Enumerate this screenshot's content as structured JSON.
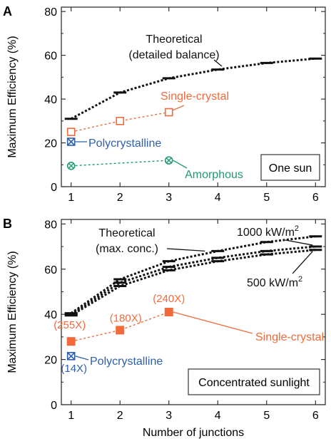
{
  "shared": {
    "ylabel": "Maximum Efficiency (%)",
    "xlabel": "Number of junctions"
  },
  "chart_data": [
    {
      "panel": "A",
      "type": "line",
      "x_ticks": [
        "1",
        "2",
        "3",
        "4",
        "5",
        "6"
      ],
      "y_ticks": [
        "0",
        "20",
        "40",
        "60",
        "80"
      ],
      "xlim": [
        0.8,
        6.2
      ],
      "ylim": [
        0,
        82
      ],
      "box_label": "One sun",
      "series": [
        {
          "name": "Theoretical (detailed balance)",
          "label_lines": [
            "Theoretical",
            "(detailed balance)"
          ],
          "color": "#111111",
          "marker": "hline",
          "x": [
            1,
            2,
            3,
            4,
            5,
            6
          ],
          "y": [
            31,
            43,
            49.5,
            53.5,
            56.5,
            58.5
          ]
        },
        {
          "name": "Single-crystal",
          "label_lines": [
            "Single-crystal"
          ],
          "color": "#f26a3a",
          "marker": "open-square",
          "x": [
            1,
            2,
            3
          ],
          "y": [
            25,
            30,
            34
          ]
        },
        {
          "name": "Polycrystalline",
          "label_lines": [
            "Polycrystalline"
          ],
          "color": "#2f5fa8",
          "marker": "cross-square",
          "x": [
            1
          ],
          "y": [
            20.5
          ]
        },
        {
          "name": "Amorphous",
          "label_lines": [
            "Amorphous"
          ],
          "color": "#1f9a6e",
          "marker": "cross-circle",
          "x": [
            1,
            3
          ],
          "y": [
            9.5,
            12
          ]
        }
      ]
    },
    {
      "panel": "B",
      "type": "line",
      "x_ticks": [
        "1",
        "2",
        "3",
        "4",
        "5",
        "6"
      ],
      "y_ticks": [
        "0",
        "20",
        "40",
        "60",
        "80"
      ],
      "xlim": [
        0.8,
        6.2
      ],
      "ylim": [
        0,
        82
      ],
      "box_label": "Concentrated sunlight",
      "series": [
        {
          "name": "Theoretical (max. conc.)",
          "label_lines": [
            "Theoretical",
            "(max. conc.)"
          ],
          "color": "#111111",
          "marker": "hline",
          "x": [
            1,
            2,
            3,
            4,
            5,
            6
          ],
          "y": [
            40.5,
            55.5,
            63.5,
            68,
            72,
            74.5
          ]
        },
        {
          "name": "1000 kW/m2",
          "label_lines": [
            "1000 kW/m"
          ],
          "label_sup": "2",
          "color": "#111111",
          "marker": "hline",
          "x": [
            1,
            2,
            3,
            4,
            5,
            6
          ],
          "y": [
            40,
            54,
            61,
            65,
            68,
            70
          ]
        },
        {
          "name": "500 kW/m2",
          "label_lines": [
            "500 kW/m"
          ],
          "label_sup": "2",
          "color": "#111111",
          "marker": "hline",
          "x": [
            1,
            2,
            3,
            4,
            5,
            6
          ],
          "y": [
            39.5,
            52.5,
            59.5,
            63.5,
            66.5,
            68.5
          ]
        },
        {
          "name": "Single-crystal",
          "label_lines": [
            "Single-crystal"
          ],
          "color": "#f26a3a",
          "marker": "filled-square",
          "x": [
            1,
            2,
            3
          ],
          "y": [
            28,
            33,
            41
          ],
          "point_labels": [
            "(255X)",
            "(180X)",
            "(240X)"
          ]
        },
        {
          "name": "Polycrystalline",
          "label_lines": [
            "Polycrystalline"
          ],
          "color": "#2f5fa8",
          "marker": "cross-square",
          "x": [
            1
          ],
          "y": [
            21.5
          ],
          "point_labels": [
            "(14X)"
          ]
        }
      ]
    }
  ]
}
